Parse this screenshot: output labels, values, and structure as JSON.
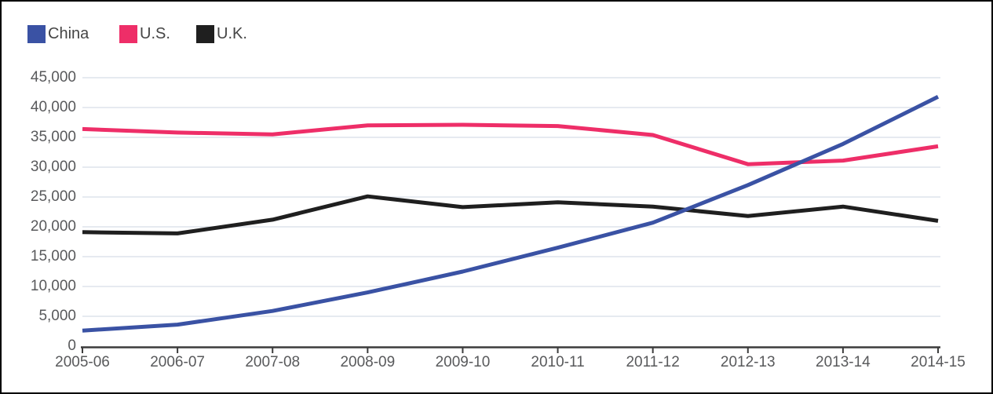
{
  "colors": {
    "background": "#ffffff",
    "border": "#000000",
    "grid": "#dee3eb",
    "axis": "#3c3c3c",
    "tick_text": "#58595b",
    "legend_text": "#454545",
    "china_blue": "#3a52a4",
    "us_pink": "#ee2e68",
    "uk_black": "#1f1f1f"
  },
  "chart_data": {
    "type": "line",
    "title": "",
    "xlabel": "",
    "ylabel": "",
    "categories": [
      "2005-06",
      "2006-07",
      "2007-08",
      "2008-09",
      "2009-10",
      "2010-11",
      "2011-12",
      "2012-13",
      "2013-14",
      "2014-15"
    ],
    "series": [
      {
        "name": "China",
        "color": "#3a52a4",
        "values": [
          2600,
          3600,
          5900,
          9000,
          12500,
          16500,
          20700,
          27000,
          33900,
          41800
        ]
      },
      {
        "name": "U.S.",
        "color": "#ee2e68",
        "values": [
          36400,
          35800,
          35500,
          37000,
          37100,
          36900,
          35400,
          30500,
          31100,
          33500
        ]
      },
      {
        "name": "U.K.",
        "color": "#1f1f1f",
        "values": [
          19100,
          18900,
          21200,
          25100,
          23300,
          24100,
          23400,
          21800,
          23400,
          21000
        ]
      }
    ],
    "y_ticks": [
      "0",
      "5,000",
      "10,000",
      "15,000",
      "20,000",
      "25,000",
      "30,000",
      "35,000",
      "40,000",
      "45,000"
    ],
    "y_tick_values": [
      0,
      5000,
      10000,
      15000,
      20000,
      25000,
      30000,
      35000,
      40000,
      45000
    ],
    "ylim": [
      0,
      45000
    ],
    "grid": "horizontal",
    "legend_position": "top-left"
  }
}
